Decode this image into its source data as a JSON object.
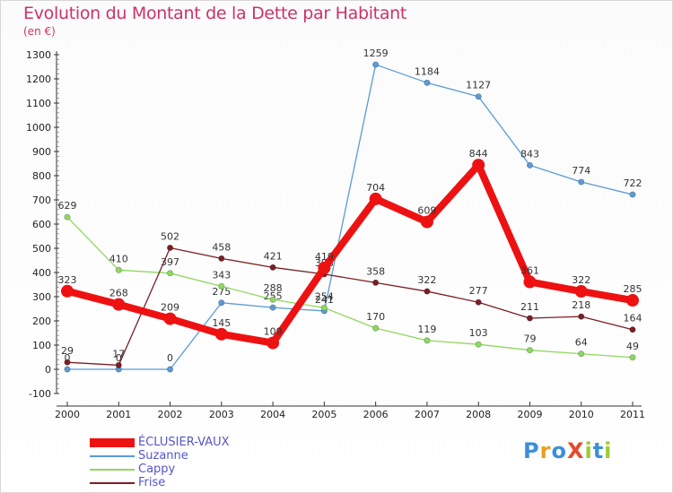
{
  "title": "Evolution du Montant de la Dette par Habitant",
  "unit": "(en €)",
  "logo": "ProXiti",
  "chart_data": {
    "type": "line",
    "title": "Evolution du Montant de la Dette par Habitant",
    "ylabel": "(en €)",
    "x": [
      "2000",
      "2001",
      "2002",
      "2003",
      "2004",
      "2005",
      "2006",
      "2007",
      "2008",
      "2009",
      "2010",
      "2011"
    ],
    "ylim": [
      -100,
      1300
    ],
    "yticks": [
      -100,
      0,
      100,
      200,
      300,
      400,
      500,
      600,
      700,
      800,
      900,
      1000,
      1100,
      1200,
      1300
    ],
    "grid": false,
    "legend_position": "bottom-left",
    "series": [
      {
        "name": "Suzanne",
        "color": "#5b9bd5",
        "values": [
          0,
          0,
          0,
          275,
          255,
          241,
          1259,
          1184,
          1127,
          843,
          774,
          722
        ],
        "labels": [
          "0",
          "0",
          "0",
          "275",
          "255",
          "241",
          "1259",
          "1184",
          "1127",
          "843",
          "774",
          "722"
        ]
      },
      {
        "name": "Cappy",
        "color": "#8fd860",
        "values": [
          629,
          410,
          397,
          343,
          288,
          254,
          170,
          119,
          103,
          79,
          64,
          49
        ],
        "labels": [
          "629",
          "410",
          "397",
          "343",
          "288",
          "254",
          "170",
          "119",
          "103",
          "79",
          "64",
          "49"
        ]
      },
      {
        "name": "Frise",
        "color": "#7a1f24",
        "values": [
          29,
          17,
          502,
          458,
          421,
          393,
          358,
          322,
          277,
          211,
          218,
          164
        ],
        "labels": [
          "29",
          "17",
          "502",
          "458",
          "421",
          "393",
          "358",
          "322",
          "277",
          "211",
          "218",
          "164"
        ]
      },
      {
        "name": "ÉCLUSIER-VAUX",
        "color": "#ee1111",
        "values": [
          323,
          268,
          209,
          145,
          109,
          419,
          704,
          609,
          844,
          361,
          322,
          285
        ],
        "labels": [
          "323",
          "268",
          "209",
          "145",
          "109",
          "419",
          "704",
          "609",
          "844",
          "361",
          "322",
          "285"
        ]
      }
    ],
    "legend": [
      "ÉCLUSIER-VAUX",
      "Suzanne",
      "Cappy",
      "Frise"
    ]
  }
}
